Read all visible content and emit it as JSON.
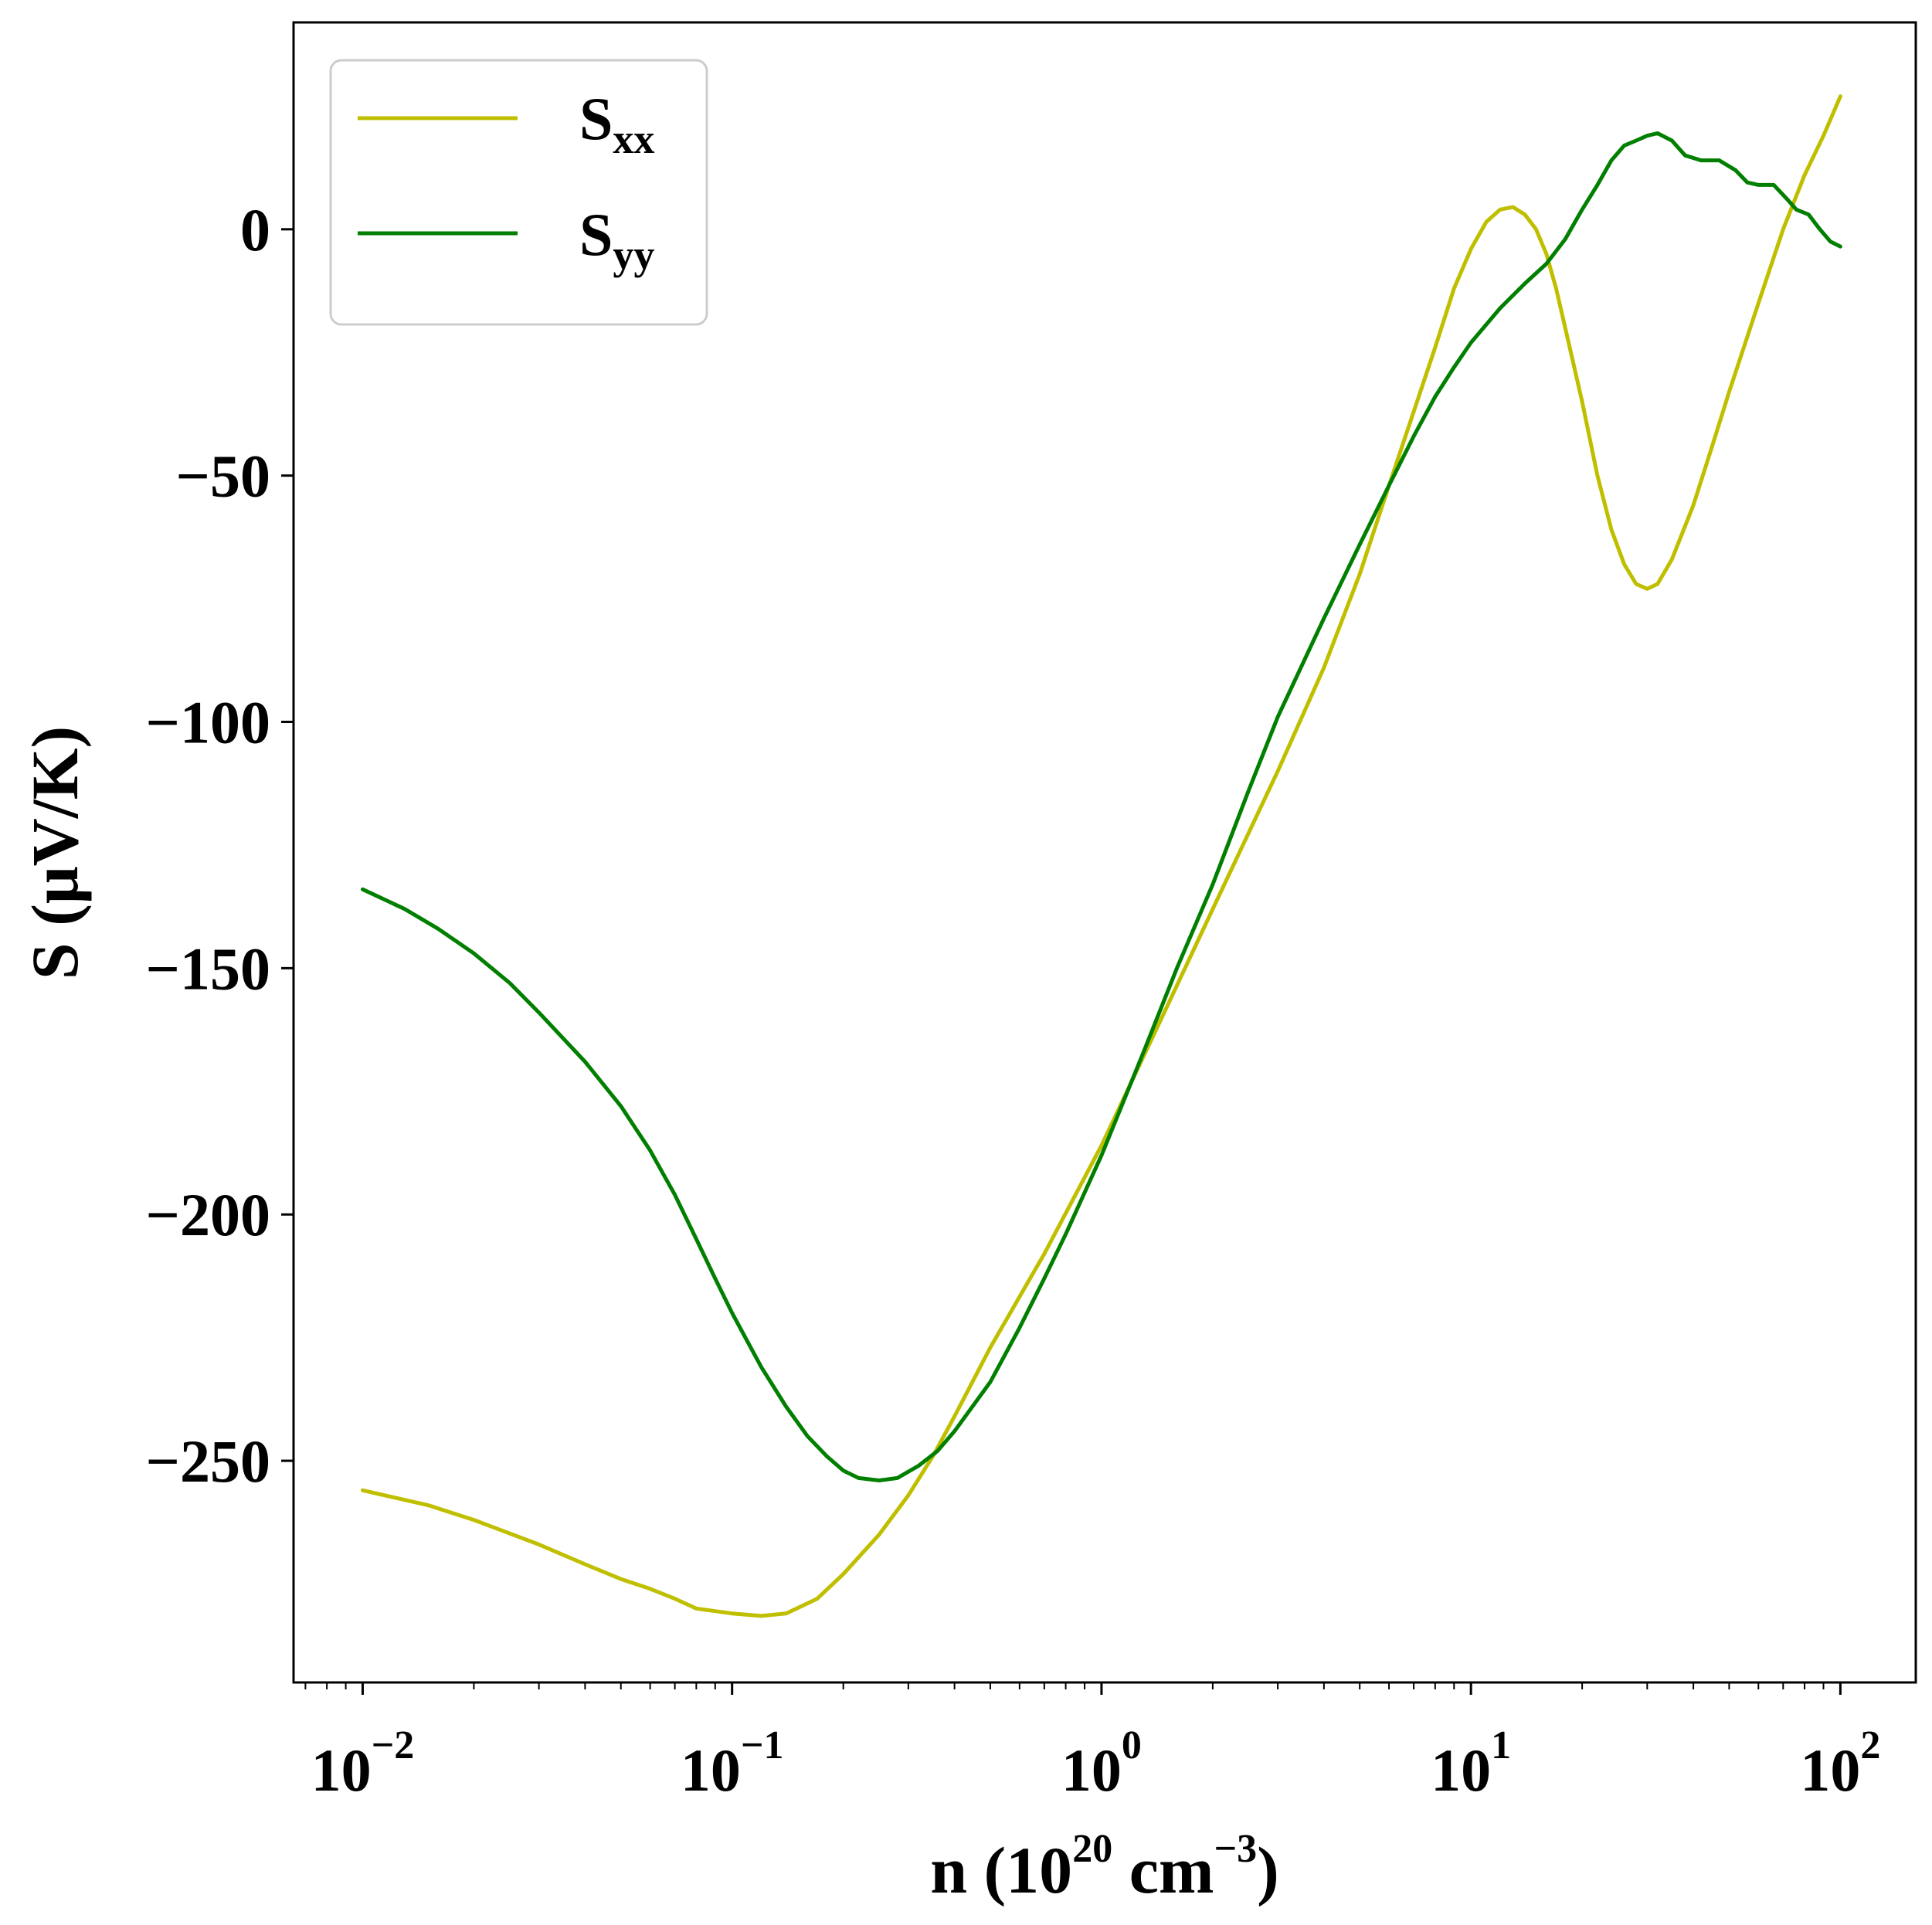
{
  "chart_data": {
    "type": "line",
    "xlabel": {
      "base": "n (10",
      "exp1": "20",
      "mid": " cm",
      "exp2": "−3",
      "end": ")"
    },
    "ylabel": "S (μV/K)",
    "xscale": "log",
    "xlim": [
      0.0065,
      160
    ],
    "ylim": [
      -295,
      42
    ],
    "x_ticks": [
      {
        "value": 0.01,
        "base": "10",
        "exp": "−2"
      },
      {
        "value": 0.1,
        "base": "10",
        "exp": "−1"
      },
      {
        "value": 1,
        "base": "10",
        "exp": "0"
      },
      {
        "value": 10,
        "base": "10",
        "exp": "1"
      },
      {
        "value": 100,
        "base": "10",
        "exp": "2"
      }
    ],
    "y_ticks": [
      {
        "value": 0,
        "label": "0"
      },
      {
        "value": -50,
        "label": "−50"
      },
      {
        "value": -100,
        "label": "−100"
      },
      {
        "value": -150,
        "label": "−150"
      },
      {
        "value": -200,
        "label": "−200"
      },
      {
        "value": -250,
        "label": "−250"
      }
    ],
    "legend_position": "top-left",
    "series": [
      {
        "name_base": "S",
        "name_sub": "xx",
        "color": "#bfbf00",
        "points": [
          [
            0.01,
            -256
          ],
          [
            0.015,
            -259
          ],
          [
            0.02,
            -262
          ],
          [
            0.03,
            -267
          ],
          [
            0.04,
            -271
          ],
          [
            0.05,
            -274
          ],
          [
            0.06,
            -276
          ],
          [
            0.07,
            -278
          ],
          [
            0.08,
            -280
          ],
          [
            0.1,
            -281
          ],
          [
            0.12,
            -281.5
          ],
          [
            0.14,
            -281
          ],
          [
            0.17,
            -278
          ],
          [
            0.2,
            -273
          ],
          [
            0.25,
            -265
          ],
          [
            0.3,
            -257
          ],
          [
            0.35,
            -249
          ],
          [
            0.4,
            -241
          ],
          [
            0.5,
            -227
          ],
          [
            0.7,
            -208
          ],
          [
            1.0,
            -186
          ],
          [
            1.5,
            -158
          ],
          [
            2.0,
            -138
          ],
          [
            3.0,
            -110
          ],
          [
            4.0,
            -89
          ],
          [
            5.0,
            -70
          ],
          [
            6.0,
            -52
          ],
          [
            7.0,
            -37
          ],
          [
            8.0,
            -24
          ],
          [
            9.0,
            -12
          ],
          [
            10.0,
            -4
          ],
          [
            11.0,
            1.5
          ],
          [
            12.0,
            4
          ],
          [
            13.0,
            4.5
          ],
          [
            14.0,
            3
          ],
          [
            15.0,
            0
          ],
          [
            16.0,
            -5
          ],
          [
            17.0,
            -12
          ],
          [
            18.0,
            -20
          ],
          [
            20.0,
            -35
          ],
          [
            22.0,
            -50
          ],
          [
            24.0,
            -61
          ],
          [
            26.0,
            -68
          ],
          [
            28.0,
            -72
          ],
          [
            30.0,
            -73
          ],
          [
            32.0,
            -72
          ],
          [
            35.0,
            -67
          ],
          [
            40.0,
            -56
          ],
          [
            45.0,
            -44
          ],
          [
            50.0,
            -33
          ],
          [
            60.0,
            -15
          ],
          [
            70.0,
            0
          ],
          [
            80.0,
            11
          ],
          [
            90.0,
            19
          ],
          [
            100.0,
            27
          ]
        ]
      },
      {
        "name_base": "S",
        "name_sub": "yy",
        "color": "#007f00",
        "points": [
          [
            0.01,
            -134
          ],
          [
            0.013,
            -138
          ],
          [
            0.016,
            -142
          ],
          [
            0.02,
            -147
          ],
          [
            0.025,
            -153
          ],
          [
            0.03,
            -159
          ],
          [
            0.04,
            -169
          ],
          [
            0.05,
            -178
          ],
          [
            0.06,
            -187
          ],
          [
            0.07,
            -196
          ],
          [
            0.08,
            -205
          ],
          [
            0.09,
            -213
          ],
          [
            0.1,
            -220
          ],
          [
            0.12,
            -231
          ],
          [
            0.14,
            -239
          ],
          [
            0.16,
            -245
          ],
          [
            0.18,
            -249
          ],
          [
            0.2,
            -252
          ],
          [
            0.22,
            -253.5
          ],
          [
            0.25,
            -254
          ],
          [
            0.28,
            -253.5
          ],
          [
            0.32,
            -251
          ],
          [
            0.36,
            -248
          ],
          [
            0.4,
            -244
          ],
          [
            0.5,
            -234
          ],
          [
            0.6,
            -223
          ],
          [
            0.7,
            -213
          ],
          [
            0.8,
            -204
          ],
          [
            1.0,
            -188
          ],
          [
            1.3,
            -167
          ],
          [
            1.6,
            -150
          ],
          [
            2.0,
            -133
          ],
          [
            2.5,
            -114
          ],
          [
            3.0,
            -99
          ],
          [
            4.0,
            -79
          ],
          [
            5.0,
            -64
          ],
          [
            6.0,
            -52
          ],
          [
            7.0,
            -42
          ],
          [
            8.0,
            -34
          ],
          [
            9.0,
            -28
          ],
          [
            10.0,
            -23
          ],
          [
            12.0,
            -16
          ],
          [
            14.0,
            -11
          ],
          [
            16.0,
            -7
          ],
          [
            18.0,
            -2
          ],
          [
            20.0,
            4
          ],
          [
            22.0,
            9
          ],
          [
            24.0,
            14
          ],
          [
            26.0,
            17
          ],
          [
            28.0,
            18
          ],
          [
            30.0,
            19
          ],
          [
            32.0,
            19.5
          ],
          [
            35.0,
            18
          ],
          [
            38.0,
            15
          ],
          [
            42.0,
            14
          ],
          [
            47.0,
            14
          ],
          [
            52.0,
            12
          ],
          [
            56.0,
            9.5
          ],
          [
            60.0,
            9
          ],
          [
            66.0,
            9
          ],
          [
            72.0,
            6
          ],
          [
            76.0,
            4
          ],
          [
            82.0,
            3
          ],
          [
            88.0,
            0
          ],
          [
            94.0,
            -2.5
          ],
          [
            100.0,
            -3.5
          ]
        ]
      }
    ]
  }
}
